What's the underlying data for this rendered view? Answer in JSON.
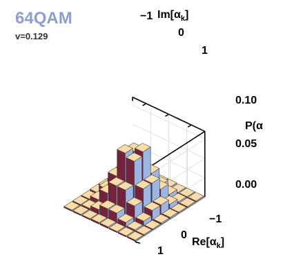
{
  "header": {
    "title": "64QAM",
    "subtitle": "v=0.129",
    "title_color": "#8a9fd1"
  },
  "chart_data": {
    "type": "bar3d",
    "title": "64QAM",
    "subtitle": "v=0.129",
    "xlabel": "Re[α",
    "xlabel_sub": "k",
    "xlabel_end": "]",
    "ylabel": "Im[α",
    "ylabel_sub": "k",
    "ylabel_end": "]",
    "zlabel": "P(α",
    "x_ticks": [
      "−1",
      "0",
      "1"
    ],
    "y_ticks": [
      "−1",
      "0",
      "1"
    ],
    "z_ticks": [
      "0.10",
      "0.05",
      "0.00"
    ],
    "zlim": [
      0,
      0.15
    ],
    "grid": "8x8",
    "colors": {
      "top": "#f9dca9",
      "side_light": "#9db5e3",
      "side_dark": "#74243a",
      "grid": "#e0e0e0"
    },
    "values": [
      [
        0.003,
        0.003,
        0.003,
        0.004,
        0.004,
        0.003,
        0.003,
        0.003
      ],
      [
        0.003,
        0.004,
        0.012,
        0.025,
        0.025,
        0.012,
        0.004,
        0.003
      ],
      [
        0.003,
        0.012,
        0.04,
        0.07,
        0.07,
        0.04,
        0.012,
        0.003
      ],
      [
        0.004,
        0.025,
        0.07,
        0.13,
        0.14,
        0.07,
        0.025,
        0.004
      ],
      [
        0.004,
        0.025,
        0.07,
        0.14,
        0.13,
        0.07,
        0.025,
        0.004
      ],
      [
        0.003,
        0.012,
        0.04,
        0.07,
        0.07,
        0.04,
        0.012,
        0.003
      ],
      [
        0.003,
        0.004,
        0.012,
        0.025,
        0.025,
        0.012,
        0.004,
        0.003
      ],
      [
        0.003,
        0.003,
        0.003,
        0.004,
        0.004,
        0.003,
        0.003,
        0.003
      ]
    ]
  }
}
